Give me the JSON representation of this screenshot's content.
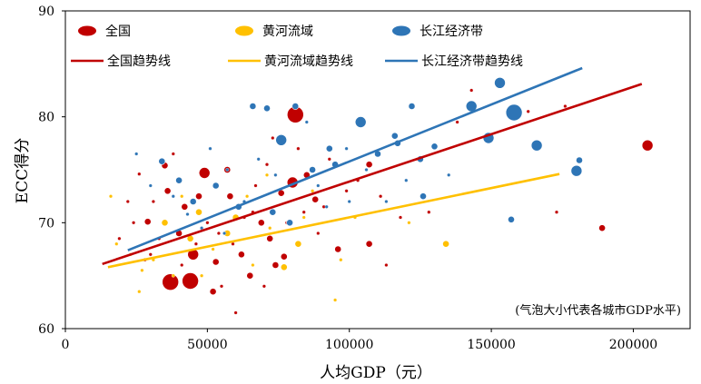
{
  "chart_data": {
    "type": "scatter",
    "xlabel": "人均GDP（元）",
    "ylabel": "ECC得分",
    "xlim": [
      0,
      220000
    ],
    "ylim": [
      60,
      90
    ],
    "xticks": [
      0,
      50000,
      100000,
      150000,
      200000
    ],
    "xtick_labels": [
      "0",
      "50000",
      "100000",
      "150000",
      "200000"
    ],
    "yticks": [
      60,
      70,
      80,
      90
    ],
    "ytick_labels": [
      "60",
      "70",
      "80",
      "90"
    ],
    "grid": false,
    "annotation": "(气泡大小代表各城市GDP水平)",
    "legend": {
      "placement": "top",
      "entries": [
        {
          "label": "全国",
          "kind": "bubble",
          "color": "#C00000"
        },
        {
          "label": "黄河流域",
          "kind": "bubble",
          "color": "#FFC000"
        },
        {
          "label": "长江经济带",
          "kind": "bubble",
          "color": "#2E75B6"
        },
        {
          "label": "全国趋势线",
          "kind": "line",
          "color": "#C00000"
        },
        {
          "label": "黄河流域趋势线",
          "kind": "line",
          "color": "#FFC000"
        },
        {
          "label": "长江经济带趋势线",
          "kind": "line",
          "color": "#2E75B6"
        }
      ]
    },
    "trendlines": [
      {
        "name": "全国趋势线",
        "color": "#C00000",
        "x": [
          13000,
          203000
        ],
        "y": [
          66.1,
          83.1
        ]
      },
      {
        "name": "黄河流域趋势线",
        "color": "#FFC000",
        "x": [
          15000,
          174000
        ],
        "y": [
          65.8,
          74.6
        ]
      },
      {
        "name": "长江经济带趋势线",
        "color": "#2E75B6",
        "x": [
          22000,
          182000
        ],
        "y": [
          67.4,
          84.6
        ]
      }
    ],
    "series": [
      {
        "name": "全国",
        "color": "#C00000",
        "points": [
          [
            205000,
            77.3,
            3
          ],
          [
            189000,
            69.5,
            2
          ],
          [
            81000,
            80.2,
            4
          ],
          [
            37000,
            64.4,
            4
          ],
          [
            44000,
            64.5,
            4
          ],
          [
            49000,
            74.7,
            3
          ],
          [
            107000,
            75.5,
            2
          ],
          [
            107000,
            68.0,
            2
          ],
          [
            77000,
            66.8,
            2
          ],
          [
            80000,
            73.8,
            3
          ],
          [
            29000,
            70.1,
            2
          ],
          [
            35000,
            75.4,
            2
          ],
          [
            36000,
            73.0,
            2
          ],
          [
            45000,
            67.0,
            3
          ],
          [
            52000,
            63.5,
            2
          ],
          [
            53000,
            66.3,
            2
          ],
          [
            57000,
            75.0,
            2
          ],
          [
            62000,
            67.0,
            2
          ],
          [
            65000,
            65.0,
            2
          ],
          [
            69000,
            70.0,
            2
          ],
          [
            72000,
            68.5,
            2
          ],
          [
            74000,
            66.0,
            2
          ],
          [
            76000,
            72.8,
            2
          ],
          [
            85000,
            74.5,
            2
          ],
          [
            88000,
            72.2,
            2
          ],
          [
            96000,
            67.5,
            2
          ],
          [
            58000,
            72.5,
            2
          ],
          [
            47000,
            72.5,
            2
          ],
          [
            40000,
            69.0,
            2
          ],
          [
            42000,
            71.5,
            2
          ],
          [
            31000,
            72.0,
            1
          ],
          [
            33000,
            68.5,
            1
          ],
          [
            26000,
            74.6,
            1
          ],
          [
            28000,
            66.5,
            1
          ],
          [
            38000,
            76.5,
            1
          ],
          [
            41000,
            66.0,
            1
          ],
          [
            55000,
            64.0,
            1
          ],
          [
            60000,
            61.5,
            1
          ],
          [
            63000,
            70.5,
            1
          ],
          [
            67000,
            73.5,
            1
          ],
          [
            71000,
            75.5,
            1
          ],
          [
            84000,
            71.0,
            1
          ],
          [
            91000,
            71.5,
            1
          ],
          [
            99000,
            73.0,
            1
          ],
          [
            103000,
            74.0,
            1
          ],
          [
            111000,
            72.5,
            1
          ],
          [
            118000,
            70.5,
            1
          ],
          [
            124000,
            76.0,
            1
          ],
          [
            128000,
            71.0,
            1
          ],
          [
            138000,
            79.5,
            1
          ],
          [
            143000,
            82.5,
            1
          ],
          [
            163000,
            80.5,
            1
          ],
          [
            176000,
            81.0,
            1
          ],
          [
            173000,
            71.0,
            1
          ],
          [
            19000,
            68.5,
            1
          ],
          [
            22000,
            72.0,
            1
          ],
          [
            24000,
            70.0,
            1
          ],
          [
            30000,
            67.0,
            1
          ],
          [
            46000,
            68.0,
            1
          ],
          [
            50000,
            70.0,
            1
          ],
          [
            54000,
            69.0,
            1
          ],
          [
            59000,
            68.0,
            1
          ],
          [
            66000,
            71.0,
            1
          ],
          [
            70000,
            64.0,
            1
          ],
          [
            73000,
            78.0,
            1
          ],
          [
            78000,
            70.0,
            1
          ],
          [
            82000,
            77.0,
            1
          ],
          [
            89000,
            69.0,
            1
          ],
          [
            93000,
            76.0,
            1
          ],
          [
            113000,
            66.0,
            1
          ]
        ]
      },
      {
        "name": "黄河流域",
        "color": "#FFC000",
        "points": [
          [
            77000,
            65.8,
            2
          ],
          [
            82000,
            68.0,
            2
          ],
          [
            57000,
            69.0,
            2
          ],
          [
            60000,
            70.5,
            2
          ],
          [
            44000,
            68.5,
            2
          ],
          [
            47000,
            71.0,
            2
          ],
          [
            35000,
            70.0,
            2
          ],
          [
            23000,
            67.0,
            1
          ],
          [
            18000,
            68.0,
            1
          ],
          [
            27000,
            65.5,
            1
          ],
          [
            31000,
            66.5,
            1
          ],
          [
            38000,
            65.0,
            1
          ],
          [
            52000,
            67.5,
            1
          ],
          [
            66000,
            66.0,
            1
          ],
          [
            72000,
            69.5,
            1
          ],
          [
            84000,
            70.5,
            1
          ],
          [
            97000,
            66.5,
            1
          ],
          [
            102000,
            70.5,
            1
          ],
          [
            121000,
            70.0,
            1
          ],
          [
            134000,
            68.0,
            2
          ],
          [
            64000,
            72.5,
            1
          ],
          [
            41000,
            72.5,
            1
          ],
          [
            95000,
            62.7,
            1
          ],
          [
            26000,
            63.5,
            1
          ],
          [
            71000,
            74.5,
            1
          ],
          [
            16000,
            72.5,
            1
          ],
          [
            48000,
            65.0,
            1
          ],
          [
            87000,
            73.0,
            1
          ]
        ]
      },
      {
        "name": "长江经济带",
        "color": "#2E75B6",
        "points": [
          [
            158000,
            80.4,
            4
          ],
          [
            153000,
            83.2,
            3
          ],
          [
            149000,
            78.0,
            3
          ],
          [
            166000,
            77.3,
            3
          ],
          [
            180000,
            74.9,
            3
          ],
          [
            181000,
            75.9,
            2
          ],
          [
            143000,
            81.0,
            3
          ],
          [
            104000,
            79.5,
            3
          ],
          [
            76000,
            77.8,
            3
          ],
          [
            81000,
            81.0,
            2
          ],
          [
            66000,
            81.0,
            2
          ],
          [
            71000,
            80.8,
            2
          ],
          [
            93000,
            77.0,
            2
          ],
          [
            95000,
            75.5,
            2
          ],
          [
            116000,
            78.2,
            2
          ],
          [
            117000,
            77.5,
            2
          ],
          [
            125000,
            76.0,
            2
          ],
          [
            126000,
            72.5,
            2
          ],
          [
            122000,
            81.0,
            2
          ],
          [
            130000,
            77.2,
            2
          ],
          [
            157000,
            70.3,
            2
          ],
          [
            40000,
            74.0,
            2
          ],
          [
            45000,
            72.0,
            2
          ],
          [
            53000,
            73.5,
            2
          ],
          [
            61000,
            71.5,
            2
          ],
          [
            73000,
            71.0,
            2
          ],
          [
            79000,
            70.0,
            2
          ],
          [
            87000,
            75.0,
            2
          ],
          [
            110000,
            76.5,
            2
          ],
          [
            34000,
            75.8,
            2
          ],
          [
            38000,
            72.5,
            1
          ],
          [
            43000,
            70.8,
            1
          ],
          [
            48000,
            69.5,
            1
          ],
          [
            56000,
            69.0,
            1
          ],
          [
            63000,
            72.0,
            1
          ],
          [
            68000,
            76.0,
            1
          ],
          [
            74000,
            74.5,
            1
          ],
          [
            89000,
            73.5,
            1
          ],
          [
            100000,
            72.0,
            1
          ],
          [
            106000,
            75.0,
            1
          ],
          [
            113000,
            72.0,
            1
          ],
          [
            120000,
            74.0,
            1
          ],
          [
            99000,
            77.0,
            1
          ],
          [
            85000,
            79.5,
            1
          ],
          [
            57000,
            75.0,
            1
          ],
          [
            51000,
            77.0,
            1
          ],
          [
            30000,
            73.5,
            1
          ],
          [
            25000,
            76.5,
            1
          ],
          [
            135000,
            74.5,
            1
          ],
          [
            92000,
            71.5,
            1
          ]
        ]
      }
    ]
  }
}
